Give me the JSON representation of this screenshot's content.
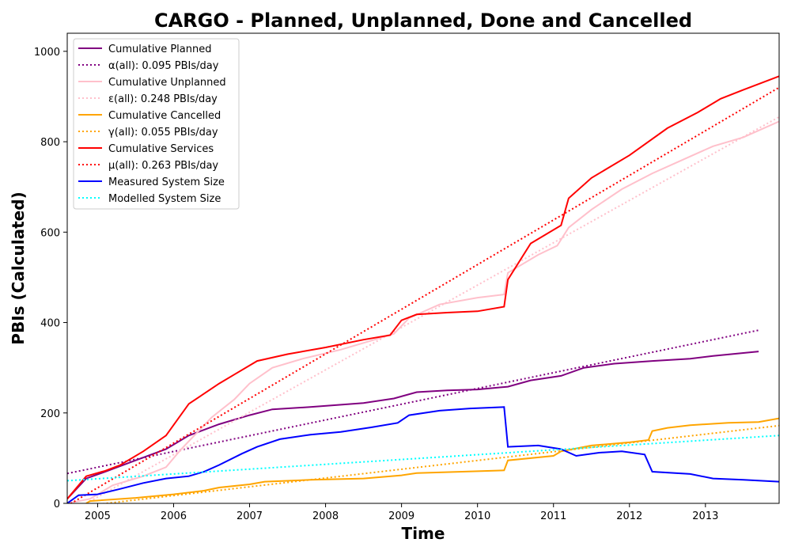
{
  "chart_data": {
    "type": "line",
    "title": "CARGO - Planned, Unplanned, Done  and Cancelled",
    "xlabel": "Time",
    "ylabel": "PBIs (Calculated)",
    "xlim": [
      2004.6,
      2013.97
    ],
    "ylim": [
      0,
      1040
    ],
    "x_ticks": [
      2005,
      2006,
      2007,
      2008,
      2009,
      2010,
      2011,
      2012,
      2013
    ],
    "y_ticks": [
      0,
      200,
      400,
      600,
      800,
      1000
    ],
    "legend_placement": "top-left",
    "grid": false,
    "series": [
      {
        "name": "Cumulative Planned",
        "color": "#800080",
        "style": "solid",
        "points": [
          [
            2004.6,
            10
          ],
          [
            2004.85,
            55
          ],
          [
            2005.1,
            70
          ],
          [
            2005.5,
            95
          ],
          [
            2005.9,
            120
          ],
          [
            2006.2,
            150
          ],
          [
            2006.6,
            175
          ],
          [
            2007.0,
            195
          ],
          [
            2007.3,
            208
          ],
          [
            2007.8,
            213
          ],
          [
            2008.5,
            222
          ],
          [
            2008.9,
            232
          ],
          [
            2009.2,
            246
          ],
          [
            2009.6,
            250
          ],
          [
            2010.0,
            252
          ],
          [
            2010.4,
            258
          ],
          [
            2010.7,
            272
          ],
          [
            2011.1,
            282
          ],
          [
            2011.4,
            300
          ],
          [
            2011.8,
            309
          ],
          [
            2012.3,
            315
          ],
          [
            2012.8,
            320
          ],
          [
            2013.1,
            326
          ],
          [
            2013.7,
            336
          ]
        ]
      },
      {
        "name": "α(all): 0.095 PBIs/day",
        "color": "#800080",
        "style": "dotted",
        "points": [
          [
            2004.6,
            66
          ],
          [
            2013.7,
            383
          ]
        ]
      },
      {
        "name": "Cumulative Unplanned",
        "color": "#ffc0cb",
        "style": "solid",
        "points": [
          [
            2004.6,
            0
          ],
          [
            2004.9,
            10
          ],
          [
            2005.2,
            40
          ],
          [
            2005.6,
            60
          ],
          [
            2005.9,
            80
          ],
          [
            2006.1,
            120
          ],
          [
            2006.5,
            190
          ],
          [
            2006.8,
            230
          ],
          [
            2007.0,
            265
          ],
          [
            2007.3,
            300
          ],
          [
            2007.7,
            320
          ],
          [
            2008.2,
            340
          ],
          [
            2008.6,
            360
          ],
          [
            2008.9,
            375
          ],
          [
            2009.1,
            410
          ],
          [
            2009.5,
            440
          ],
          [
            2010.0,
            455
          ],
          [
            2010.35,
            462
          ],
          [
            2010.4,
            510
          ],
          [
            2010.8,
            550
          ],
          [
            2011.05,
            570
          ],
          [
            2011.2,
            610
          ],
          [
            2011.5,
            650
          ],
          [
            2011.9,
            695
          ],
          [
            2012.3,
            730
          ],
          [
            2012.7,
            760
          ],
          [
            2013.1,
            790
          ],
          [
            2013.5,
            810
          ],
          [
            2013.97,
            845
          ]
        ]
      },
      {
        "name": "ε(all): 0.248 PBIs/day",
        "color": "#ffc0cb",
        "style": "dotted",
        "points": [
          [
            2004.85,
            0
          ],
          [
            2013.97,
            855
          ]
        ]
      },
      {
        "name": "Cumulative Cancelled",
        "color": "#ffa500",
        "style": "solid",
        "points": [
          [
            2004.85,
            0
          ],
          [
            2004.9,
            5
          ],
          [
            2005.5,
            12
          ],
          [
            2006.0,
            20
          ],
          [
            2006.4,
            28
          ],
          [
            2006.6,
            35
          ],
          [
            2007.0,
            42
          ],
          [
            2007.2,
            48
          ],
          [
            2007.8,
            52
          ],
          [
            2008.5,
            55
          ],
          [
            2009.0,
            62
          ],
          [
            2009.2,
            67
          ],
          [
            2009.8,
            70
          ],
          [
            2010.35,
            73
          ],
          [
            2010.4,
            95
          ],
          [
            2011.0,
            105
          ],
          [
            2011.1,
            115
          ],
          [
            2011.5,
            128
          ],
          [
            2012.0,
            135
          ],
          [
            2012.25,
            140
          ],
          [
            2012.3,
            160
          ],
          [
            2012.5,
            167
          ],
          [
            2012.8,
            173
          ],
          [
            2013.3,
            178
          ],
          [
            2013.7,
            180
          ],
          [
            2013.97,
            188
          ]
        ]
      },
      {
        "name": "γ(all): 0.055 PBIs/day",
        "color": "#ffa500",
        "style": "dotted",
        "points": [
          [
            2004.6,
            -10
          ],
          [
            2013.97,
            172
          ]
        ]
      },
      {
        "name": "Cumulative Services",
        "color": "#ff0000",
        "style": "solid",
        "points": [
          [
            2004.6,
            10
          ],
          [
            2004.85,
            60
          ],
          [
            2005.1,
            72
          ],
          [
            2005.3,
            85
          ],
          [
            2005.6,
            115
          ],
          [
            2005.9,
            150
          ],
          [
            2006.2,
            220
          ],
          [
            2006.6,
            265
          ],
          [
            2006.8,
            285
          ],
          [
            2007.1,
            315
          ],
          [
            2007.5,
            330
          ],
          [
            2008.0,
            345
          ],
          [
            2008.5,
            362
          ],
          [
            2008.85,
            372
          ],
          [
            2009.0,
            405
          ],
          [
            2009.2,
            418
          ],
          [
            2009.6,
            422
          ],
          [
            2010.0,
            425
          ],
          [
            2010.35,
            435
          ],
          [
            2010.4,
            495
          ],
          [
            2010.7,
            575
          ],
          [
            2011.1,
            615
          ],
          [
            2011.2,
            675
          ],
          [
            2011.5,
            720
          ],
          [
            2012.0,
            770
          ],
          [
            2012.5,
            830
          ],
          [
            2012.9,
            865
          ],
          [
            2013.2,
            895
          ],
          [
            2013.5,
            915
          ],
          [
            2013.97,
            945
          ]
        ]
      },
      {
        "name": "μ(all): 0.263 PBIs/day",
        "color": "#ff0000",
        "style": "dotted",
        "points": [
          [
            2004.6,
            -5
          ],
          [
            2013.97,
            920
          ]
        ]
      },
      {
        "name": "Measured System Size",
        "color": "#0000ff",
        "style": "solid",
        "points": [
          [
            2004.6,
            0
          ],
          [
            2004.75,
            18
          ],
          [
            2005.0,
            20
          ],
          [
            2005.3,
            32
          ],
          [
            2005.6,
            45
          ],
          [
            2005.9,
            55
          ],
          [
            2006.2,
            60
          ],
          [
            2006.4,
            70
          ],
          [
            2006.6,
            85
          ],
          [
            2006.9,
            110
          ],
          [
            2007.1,
            125
          ],
          [
            2007.4,
            142
          ],
          [
            2007.8,
            152
          ],
          [
            2008.2,
            158
          ],
          [
            2008.6,
            168
          ],
          [
            2008.95,
            178
          ],
          [
            2009.1,
            195
          ],
          [
            2009.5,
            205
          ],
          [
            2009.9,
            210
          ],
          [
            2010.35,
            213
          ],
          [
            2010.4,
            125
          ],
          [
            2010.8,
            128
          ],
          [
            2011.1,
            120
          ],
          [
            2011.3,
            105
          ],
          [
            2011.6,
            112
          ],
          [
            2011.9,
            115
          ],
          [
            2012.2,
            108
          ],
          [
            2012.3,
            70
          ],
          [
            2012.8,
            65
          ],
          [
            2013.1,
            55
          ],
          [
            2013.5,
            52
          ],
          [
            2013.97,
            48
          ]
        ]
      },
      {
        "name": "Modelled System Size",
        "color": "#00ffff",
        "style": "dotted",
        "points": [
          [
            2004.6,
            50
          ],
          [
            2013.97,
            150
          ]
        ]
      }
    ]
  }
}
